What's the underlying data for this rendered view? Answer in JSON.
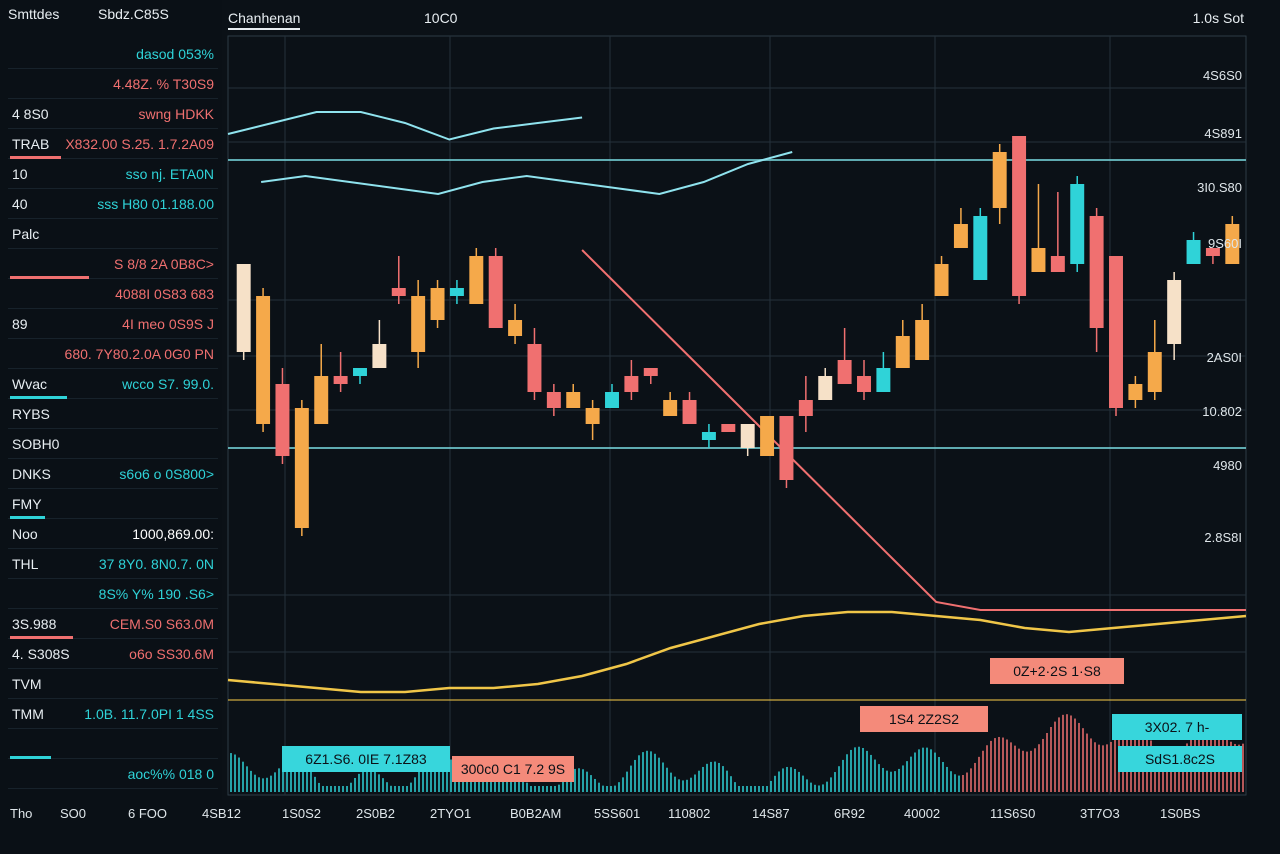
{
  "colors": {
    "background": "#0b1117",
    "grid": "#24313b",
    "bull": "#2fd3d8",
    "bear": "#f07070",
    "orange": "#f5a94a",
    "cream": "#f6e1c8",
    "ma_line": "#8fe3ee",
    "avg_line": "#f0c648",
    "guide": "#6ec6cc"
  },
  "header": {
    "left_title": "Smttdes",
    "left_sub": "Sbdz.C85S",
    "tab": "Chanhenan",
    "center": "10C0",
    "right": "1.0s Sot"
  },
  "sidebar": {
    "rows": [
      {
        "label": "",
        "value": "dasod 053%",
        "color": "#2fd3d8"
      },
      {
        "label": "",
        "value": "4.48Z. % T30S9",
        "color": "#f07070"
      },
      {
        "label": "4 8S0",
        "value": "swng HDKK",
        "color": "#f07070"
      },
      {
        "label": "TRAB",
        "value": "X832.00 S.25. 1.7.2A09",
        "color": "#f07070"
      },
      {
        "label": "10",
        "value": "sso nj. ETA0N",
        "color": "#2fd3d8"
      },
      {
        "label": "40",
        "value": "sss H80 01.188.00",
        "color": "#2fd3d8"
      },
      {
        "label": "Palc",
        "value": "",
        "color": "#f07070"
      },
      {
        "label": "",
        "value": "S 8/8 2A 0B8C>",
        "color": "#f07070"
      },
      {
        "label": "",
        "value": "4088I 0S83 683",
        "color": "#f07070"
      },
      {
        "label": "89",
        "value": "4I meo 0S9S J",
        "color": "#f07070"
      },
      {
        "label": "",
        "value": "680. 7Y80.2.0A 0G0 PN",
        "color": "#f07070"
      },
      {
        "label": "Wvac",
        "value": "wcco S7. 99.0.",
        "color": "#2fd3d8"
      },
      {
        "label": "RYBS",
        "value": "",
        "color": "#f07070"
      },
      {
        "label": "SOBH0",
        "value": "",
        "color": "#f07070"
      },
      {
        "label": "DNKS",
        "value": "s6o6 o 0S800>",
        "color": "#2fd3d8"
      },
      {
        "label": "FMY",
        "value": "",
        "color": "#2fd3d8"
      },
      {
        "label": "Noo",
        "value": "1000,869.00:",
        "color": "#ffffff"
      },
      {
        "label": "THL",
        "value": "37 8Y0. 8N0.7. 0N",
        "color": "#2fd3d8"
      },
      {
        "label": "",
        "value": "8S% Y% 190 .S6>",
        "color": "#2fd3d8"
      },
      {
        "label": "3S.988",
        "value": "CEM.S0 S63.0M",
        "color": "#f07070"
      },
      {
        "label": "4. S308S",
        "value": "o6o SS30.6M",
        "color": "#f07070"
      },
      {
        "label": "TVM",
        "value": "",
        "color": "#2fd3d8"
      },
      {
        "label": "TMM",
        "value": "1.0B. 11.7.0PI 1 4SS",
        "color": "#2fd3d8"
      },
      {
        "label": "",
        "value": "",
        "color": "#2fd3d8"
      },
      {
        "label": "",
        "value": "aoc%% 018 0",
        "color": "#2fd3d8"
      }
    ]
  },
  "chart_data": {
    "type": "candlestick",
    "y_ticks": [
      "4S6S0",
      "4S891",
      "3I0.S80",
      "9S60I",
      "2AS0I",
      "10.802",
      "4980",
      "2.8S8I"
    ],
    "x_ticks": [
      "Tho",
      "SO0",
      "6 FOO",
      "4SB12",
      "1S0S2",
      "2S0B2",
      "2TYO1",
      "B0B2AM",
      "5SS601",
      "110802",
      "14S87",
      "6R92",
      "40002",
      "11S6S0",
      "3T7O3",
      "1S0BS"
    ],
    "candles": [
      {
        "o": 52.0,
        "h": 52.0,
        "l": 40.0,
        "c": 41.0,
        "color": "cream"
      },
      {
        "o": 48.0,
        "h": 49.0,
        "l": 31.0,
        "c": 32.0,
        "color": "orange"
      },
      {
        "o": 37.0,
        "h": 39.0,
        "l": 27.0,
        "c": 28.0,
        "color": "bear"
      },
      {
        "o": 34.0,
        "h": 35.0,
        "l": 18.0,
        "c": 19.0,
        "color": "orange"
      },
      {
        "o": 32.0,
        "h": 42.0,
        "l": 32.0,
        "c": 38.0,
        "color": "orange"
      },
      {
        "o": 37.0,
        "h": 41.0,
        "l": 36.0,
        "c": 38.0,
        "color": "bear"
      },
      {
        "o": 38.0,
        "h": 39.0,
        "l": 37.0,
        "c": 39.0,
        "color": "bull"
      },
      {
        "o": 39.0,
        "h": 45.0,
        "l": 39.0,
        "c": 42.0,
        "color": "cream"
      },
      {
        "o": 48.0,
        "h": 53.0,
        "l": 47.0,
        "c": 49.0,
        "color": "bear"
      },
      {
        "o": 41.0,
        "h": 50.0,
        "l": 39.0,
        "c": 48.0,
        "color": "orange"
      },
      {
        "o": 45.0,
        "h": 50.0,
        "l": 44.0,
        "c": 49.0,
        "color": "orange"
      },
      {
        "o": 48.0,
        "h": 50.0,
        "l": 47.0,
        "c": 49.0,
        "color": "bull"
      },
      {
        "o": 47.0,
        "h": 54.0,
        "l": 47.0,
        "c": 53.0,
        "color": "orange"
      },
      {
        "o": 53.0,
        "h": 54.0,
        "l": 44.0,
        "c": 44.0,
        "color": "bear"
      },
      {
        "o": 43.0,
        "h": 47.0,
        "l": 42.0,
        "c": 45.0,
        "color": "orange"
      },
      {
        "o": 42.0,
        "h": 44.0,
        "l": 35.0,
        "c": 36.0,
        "color": "bear"
      },
      {
        "o": 36.0,
        "h": 37.0,
        "l": 33.0,
        "c": 34.0,
        "color": "bear"
      },
      {
        "o": 34.0,
        "h": 37.0,
        "l": 34.0,
        "c": 36.0,
        "color": "orange"
      },
      {
        "o": 34.0,
        "h": 35.0,
        "l": 30.0,
        "c": 32.0,
        "color": "orange"
      },
      {
        "o": 34.0,
        "h": 37.0,
        "l": 34.0,
        "c": 36.0,
        "color": "bull"
      },
      {
        "o": 38.0,
        "h": 40.0,
        "l": 35.0,
        "c": 36.0,
        "color": "bear"
      },
      {
        "o": 39.0,
        "h": 39.0,
        "l": 37.0,
        "c": 38.0,
        "color": "bear"
      },
      {
        "o": 33.0,
        "h": 36.0,
        "l": 33.0,
        "c": 35.0,
        "color": "orange"
      },
      {
        "o": 35.0,
        "h": 36.0,
        "l": 32.0,
        "c": 32.0,
        "color": "bear"
      },
      {
        "o": 31.0,
        "h": 32.0,
        "l": 29.0,
        "c": 30.0,
        "color": "bull"
      },
      {
        "o": 32.0,
        "h": 32.0,
        "l": 31.0,
        "c": 31.0,
        "color": "bear"
      },
      {
        "o": 32.0,
        "h": 32.0,
        "l": 28.0,
        "c": 29.0,
        "color": "cream"
      },
      {
        "o": 28.0,
        "h": 33.0,
        "l": 28.0,
        "c": 33.0,
        "color": "orange"
      },
      {
        "o": 33.0,
        "h": 33.0,
        "l": 24.0,
        "c": 25.0,
        "color": "bear"
      },
      {
        "o": 35.0,
        "h": 38.0,
        "l": 31.0,
        "c": 33.0,
        "color": "bear"
      },
      {
        "o": 35.0,
        "h": 39.0,
        "l": 35.0,
        "c": 38.0,
        "color": "cream"
      },
      {
        "o": 37.0,
        "h": 44.0,
        "l": 37.0,
        "c": 40.0,
        "color": "bear"
      },
      {
        "o": 38.0,
        "h": 40.0,
        "l": 35.0,
        "c": 36.0,
        "color": "bear"
      },
      {
        "o": 36.0,
        "h": 41.0,
        "l": 36.0,
        "c": 39.0,
        "color": "bull"
      },
      {
        "o": 39.0,
        "h": 45.0,
        "l": 39.0,
        "c": 43.0,
        "color": "orange"
      },
      {
        "o": 40.0,
        "h": 47.0,
        "l": 40.0,
        "c": 45.0,
        "color": "orange"
      },
      {
        "o": 48.0,
        "h": 53.0,
        "l": 48.0,
        "c": 52.0,
        "color": "orange"
      },
      {
        "o": 54.0,
        "h": 59.0,
        "l": 54.0,
        "c": 57.0,
        "color": "orange"
      },
      {
        "o": 50.0,
        "h": 59.0,
        "l": 50.0,
        "c": 58.0,
        "color": "bull"
      },
      {
        "o": 59.0,
        "h": 67.0,
        "l": 57.0,
        "c": 66.0,
        "color": "orange"
      },
      {
        "o": 68.0,
        "h": 68.0,
        "l": 47.0,
        "c": 48.0,
        "color": "bear"
      },
      {
        "o": 51.0,
        "h": 62.0,
        "l": 51.0,
        "c": 54.0,
        "color": "orange"
      },
      {
        "o": 53.0,
        "h": 61.0,
        "l": 51.0,
        "c": 51.0,
        "color": "bear"
      },
      {
        "o": 62.0,
        "h": 63.0,
        "l": 51.0,
        "c": 52.0,
        "color": "bull"
      },
      {
        "o": 58.0,
        "h": 59.0,
        "l": 41.0,
        "c": 44.0,
        "color": "bear"
      },
      {
        "o": 53.0,
        "h": 53.0,
        "l": 33.0,
        "c": 34.0,
        "color": "bear"
      },
      {
        "o": 35.0,
        "h": 38.0,
        "l": 34.0,
        "c": 37.0,
        "color": "orange"
      },
      {
        "o": 36.0,
        "h": 45.0,
        "l": 35.0,
        "c": 41.0,
        "color": "orange"
      },
      {
        "o": 42.0,
        "h": 51.0,
        "l": 40.0,
        "c": 50.0,
        "color": "cream"
      },
      {
        "o": 52.0,
        "h": 56.0,
        "l": 52.0,
        "c": 55.0,
        "color": "bull"
      },
      {
        "o": 53.0,
        "h": 54.0,
        "l": 52.0,
        "c": 54.0,
        "color": "bear"
      },
      {
        "o": 52.0,
        "h": 58.0,
        "l": 52.0,
        "c": 57.0,
        "color": "orange"
      }
    ],
    "ma_line": [
      72,
      74,
      76,
      76,
      74,
      71,
      73,
      74,
      75,
      72,
      68,
      64,
      59,
      53,
      47,
      41,
      35,
      29,
      23,
      17,
      11,
      5,
      0,
      -5
    ],
    "secondary_line": [
      62,
      63,
      63,
      64,
      63,
      62,
      64,
      62,
      61,
      63,
      64,
      63,
      64,
      63,
      62,
      61,
      63,
      64,
      63,
      62,
      61,
      63,
      66,
      68
    ],
    "avg_line": [
      5,
      4,
      3,
      2,
      2,
      3,
      3,
      4,
      6,
      9,
      13,
      16,
      19,
      21,
      22,
      22,
      21,
      20,
      18,
      17,
      18,
      19,
      20,
      21
    ],
    "guide_levels": [
      65,
      29
    ]
  },
  "overlays": {
    "box1": "0Z+2·2S 1·S8",
    "box2": "1S4 2Z2S2",
    "box3": "3X02. 7 h‐",
    "box4": "SdS1.8c2S",
    "box5": "6Z1.S6. 0IE 7.1Z83",
    "box6": "300c0 C1 7.2 9S"
  }
}
